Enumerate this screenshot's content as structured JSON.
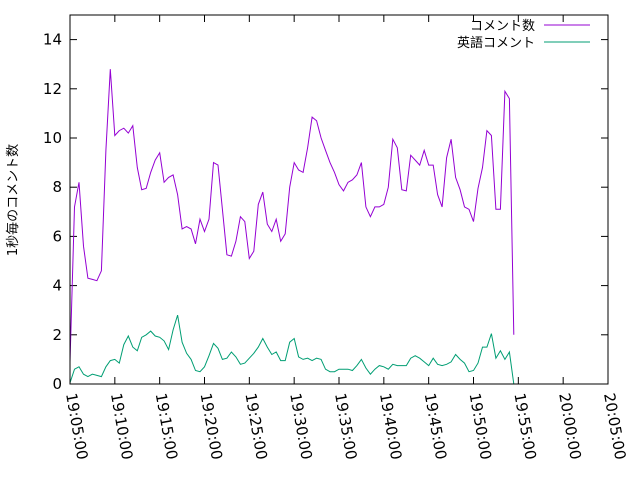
{
  "chart_data": {
    "type": "line",
    "ylabel": "1秒毎のコメント数",
    "xlim": [
      "19:05:00",
      "20:05:00"
    ],
    "ylim": [
      0,
      15
    ],
    "y_ticks": [
      0,
      2,
      4,
      6,
      8,
      10,
      12,
      14
    ],
    "x_ticks": [
      "19:05:00",
      "19:10:00",
      "19:15:00",
      "19:20:00",
      "19:25:00",
      "19:30:00",
      "19:35:00",
      "19:40:00",
      "19:45:00",
      "19:50:00",
      "19:55:00",
      "20:00:00",
      "20:05:00"
    ],
    "grid": false,
    "legend_position": "top-right",
    "x_step_seconds": 30,
    "series": [
      {
        "name": "コメント数",
        "color": "#9400d3",
        "x_start": "19:05:00",
        "values": [
          0.9,
          7.2,
          8.2,
          5.6,
          4.3,
          4.25,
          4.2,
          4.6,
          9.5,
          12.8,
          10.1,
          10.3,
          10.4,
          10.2,
          10.5,
          8.8,
          7.9,
          7.95,
          8.6,
          9.1,
          9.4,
          8.2,
          8.4,
          8.5,
          7.7,
          6.3,
          6.4,
          6.3,
          5.7,
          6.7,
          6.2,
          6.7,
          9.0,
          8.9,
          7.1,
          5.25,
          5.2,
          5.8,
          6.8,
          6.6,
          5.1,
          5.4,
          7.3,
          7.8,
          6.5,
          6.2,
          6.7,
          5.8,
          6.1,
          8.0,
          9.0,
          8.7,
          8.6,
          9.6,
          10.85,
          10.7,
          10.0,
          9.5,
          9.0,
          8.6,
          8.1,
          7.85,
          8.2,
          8.3,
          8.5,
          9.0,
          7.2,
          6.8,
          7.2,
          7.2,
          7.3,
          8.0,
          9.95,
          9.6,
          7.9,
          7.85,
          9.3,
          9.1,
          8.9,
          9.5,
          8.9,
          8.9,
          7.7,
          7.2,
          9.2,
          9.95,
          8.4,
          7.9,
          7.2,
          7.1,
          6.6,
          7.95,
          8.8,
          10.3,
          10.1,
          7.1,
          7.1,
          11.9,
          11.6,
          2.0
        ],
        "_comment": "values every 30 s"
      },
      {
        "name": "英語コメント",
        "color": "#009e73",
        "x_start": "19:05:00",
        "values": [
          0.05,
          0.6,
          0.7,
          0.4,
          0.3,
          0.4,
          0.35,
          0.3,
          0.7,
          0.95,
          1.0,
          0.85,
          1.6,
          1.95,
          1.5,
          1.35,
          1.9,
          2.0,
          2.15,
          1.95,
          1.9,
          1.75,
          1.4,
          2.2,
          2.8,
          1.7,
          1.25,
          1.0,
          0.55,
          0.5,
          0.7,
          1.15,
          1.65,
          1.45,
          1.0,
          1.05,
          1.3,
          1.1,
          0.8,
          0.85,
          1.05,
          1.25,
          1.5,
          1.85,
          1.5,
          1.2,
          1.3,
          0.95,
          0.95,
          1.7,
          1.85,
          1.1,
          1.0,
          1.05,
          0.95,
          1.05,
          1.0,
          0.6,
          0.5,
          0.5,
          0.6,
          0.6,
          0.6,
          0.55,
          0.75,
          1.0,
          0.65,
          0.4,
          0.6,
          0.75,
          0.7,
          0.6,
          0.8,
          0.75,
          0.75,
          0.75,
          1.05,
          1.15,
          1.05,
          0.9,
          0.75,
          1.05,
          0.8,
          0.75,
          0.8,
          0.9,
          1.2,
          1.0,
          0.85,
          0.5,
          0.55,
          0.85,
          1.5,
          1.5,
          2.05,
          1.05,
          1.35,
          1.0,
          1.3,
          0.0
        ]
      }
    ]
  }
}
